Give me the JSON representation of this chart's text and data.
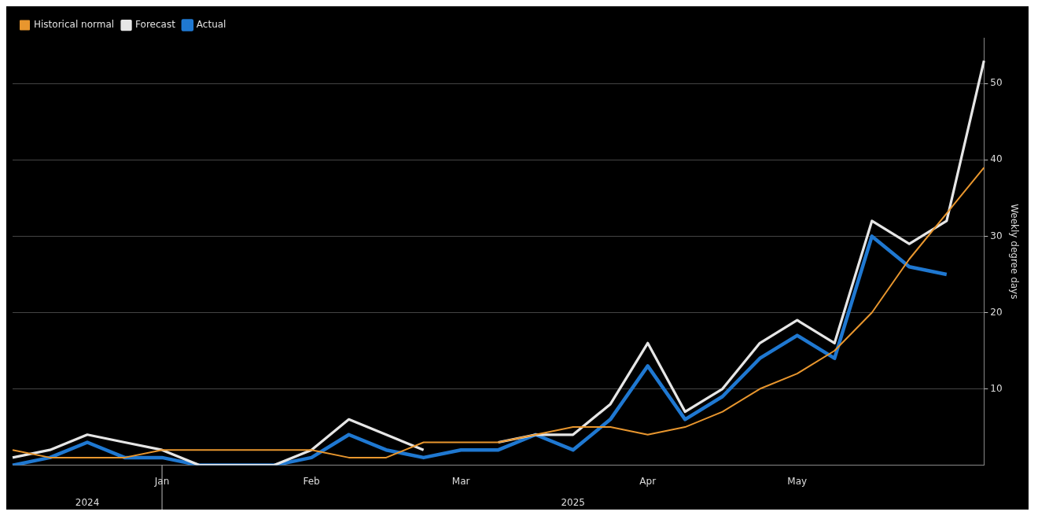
{
  "chart_data": {
    "type": "line",
    "categories": [
      null,
      null,
      null,
      null,
      "Jan",
      null,
      null,
      null,
      "Feb",
      null,
      null,
      null,
      "Mar",
      null,
      null,
      null,
      null,
      "Apr",
      null,
      null,
      null,
      "May",
      null,
      null,
      null,
      null,
      null
    ],
    "series": [
      {
        "name": "Historical normal",
        "color": "#e8962e",
        "values": [
          2,
          1,
          1,
          1,
          2,
          2,
          2,
          2,
          2,
          1,
          1,
          3,
          3,
          3,
          4,
          5,
          5,
          4,
          5,
          7,
          10,
          12,
          15,
          20,
          27,
          33,
          39
        ]
      },
      {
        "name": "Forecast",
        "color": "#e6e6e6",
        "values": [
          1,
          2,
          4,
          3,
          2,
          0,
          0,
          0,
          2,
          6,
          4,
          2,
          null,
          3,
          4,
          4,
          8,
          16,
          7,
          10,
          16,
          19,
          16,
          32,
          29,
          32,
          53
        ]
      },
      {
        "name": "Actual",
        "color": "#1f78d1",
        "values": [
          0,
          1,
          3,
          1,
          1,
          0,
          0,
          0,
          1,
          4,
          2,
          1,
          2,
          2,
          4,
          2,
          6,
          13,
          6,
          9,
          14,
          17,
          14,
          30,
          26,
          25,
          null
        ]
      }
    ],
    "ylabel": "Weekly degree days",
    "ylim": [
      0,
      56
    ],
    "yticks": [
      10,
      20,
      30,
      40,
      50
    ],
    "annotations": [
      "2024",
      "2025"
    ],
    "grid": "y",
    "legend": "top left",
    "marker": "none",
    "line_style": "solid"
  }
}
